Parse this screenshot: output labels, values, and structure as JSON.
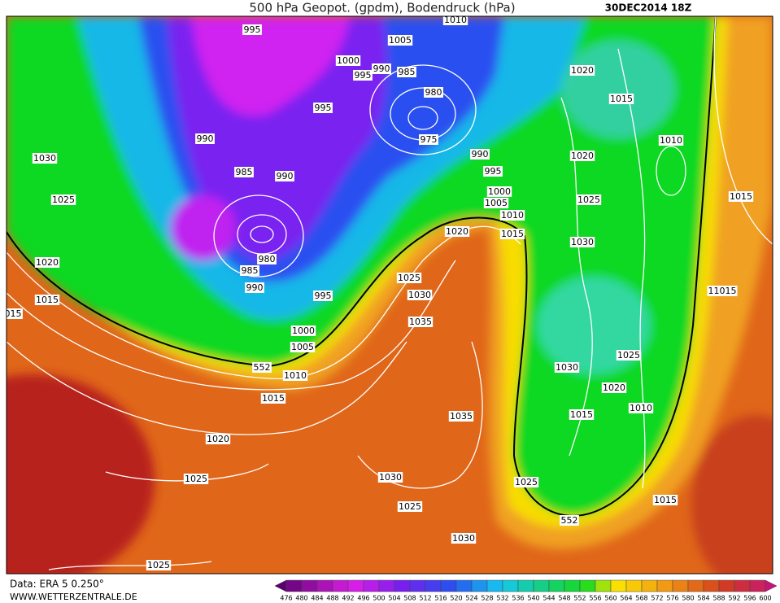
{
  "header": {
    "title": "500 hPa Geopot. (gpdm), Bodendruck (hPa)",
    "date": "30DEC2014 18Z"
  },
  "map": {
    "isobar_labels": [
      "995",
      "1010",
      "1005",
      "1000",
      "995",
      "990",
      "985",
      "980",
      "995",
      "975",
      "990",
      "1030",
      "985",
      "990",
      "990",
      "995",
      "1000",
      "1005",
      "1010",
      "1015",
      "1020",
      "1025",
      "980",
      "985",
      "990",
      "1020",
      "1015",
      "015",
      "995",
      "1025",
      "1030",
      "1035",
      "1000",
      "1005",
      "552",
      "1010",
      "1015",
      "1020",
      "1035",
      "1030",
      "1025",
      "1025",
      "1030",
      "1025",
      "1020",
      "1015",
      "1010",
      "1020",
      "1025",
      "1015",
      "1030",
      "11015",
      "1025",
      "1030",
      "1020",
      "1010",
      "1015",
      "1025",
      "1015",
      "552"
    ]
  },
  "legend": {
    "values": [
      476,
      480,
      484,
      488,
      492,
      496,
      500,
      504,
      508,
      512,
      516,
      520,
      524,
      528,
      532,
      536,
      540,
      544,
      548,
      552,
      556,
      560,
      564,
      568,
      572,
      576,
      580,
      584,
      588,
      592,
      596,
      600
    ]
  },
  "footer": {
    "source": "Data: ERA 5 0.250°",
    "website": "WWW.WETTERZENTRALE.DE"
  }
}
